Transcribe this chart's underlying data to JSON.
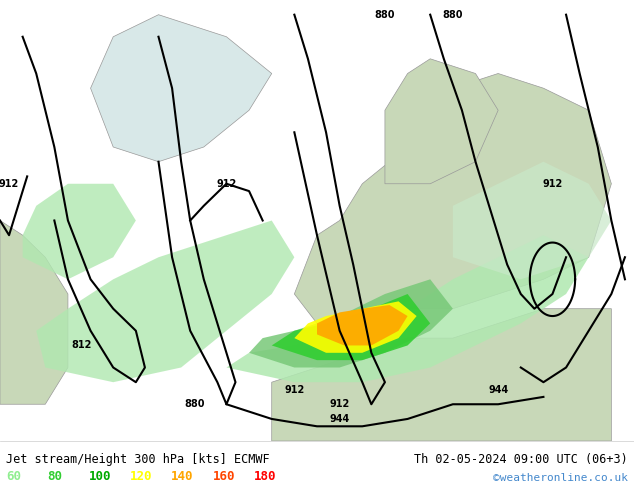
{
  "title_left": "Jet stream/Height 300 hPa [kts] ECMWF",
  "title_right": "Th 02-05-2024 09:00 UTC (06+3)",
  "credit": "©weatheronline.co.uk",
  "legend_values": [
    60,
    80,
    100,
    120,
    140,
    160,
    180
  ],
  "legend_colors": [
    "#90ee90",
    "#32cd32",
    "#00aa00",
    "#ffff00",
    "#ffa500",
    "#ff4500",
    "#ff0000"
  ],
  "fig_width": 6.34,
  "fig_height": 4.9,
  "dpi": 100
}
